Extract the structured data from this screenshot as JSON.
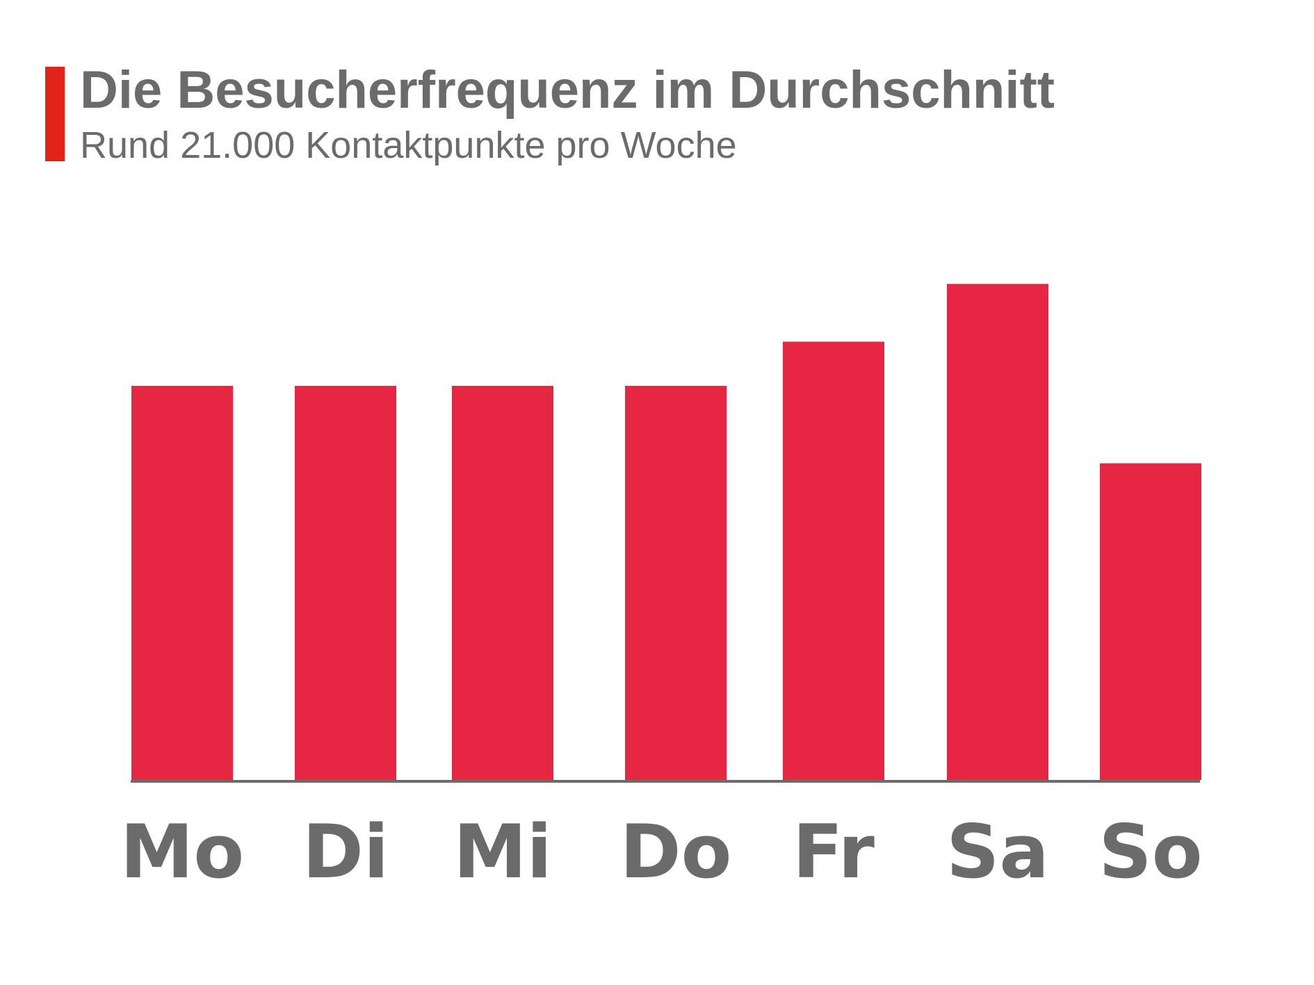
{
  "header": {
    "title": "Die Besucherfrequenz im Durchschnitt",
    "subtitle": "Rund 21.000 Kontaktpunkte pro Woche",
    "accent_color": "#e2231a"
  },
  "chart_data": {
    "type": "bar",
    "categories": [
      "Mo",
      "Di",
      "Mi",
      "Do",
      "Fr",
      "Sa",
      "So"
    ],
    "values": [
      2900,
      2900,
      2900,
      2900,
      3225,
      3650,
      2330
    ],
    "ylim": [
      0,
      4000
    ],
    "grid": false,
    "legend": "none",
    "bar_color": "#e62642",
    "axis_color": "#6b6b6b"
  }
}
